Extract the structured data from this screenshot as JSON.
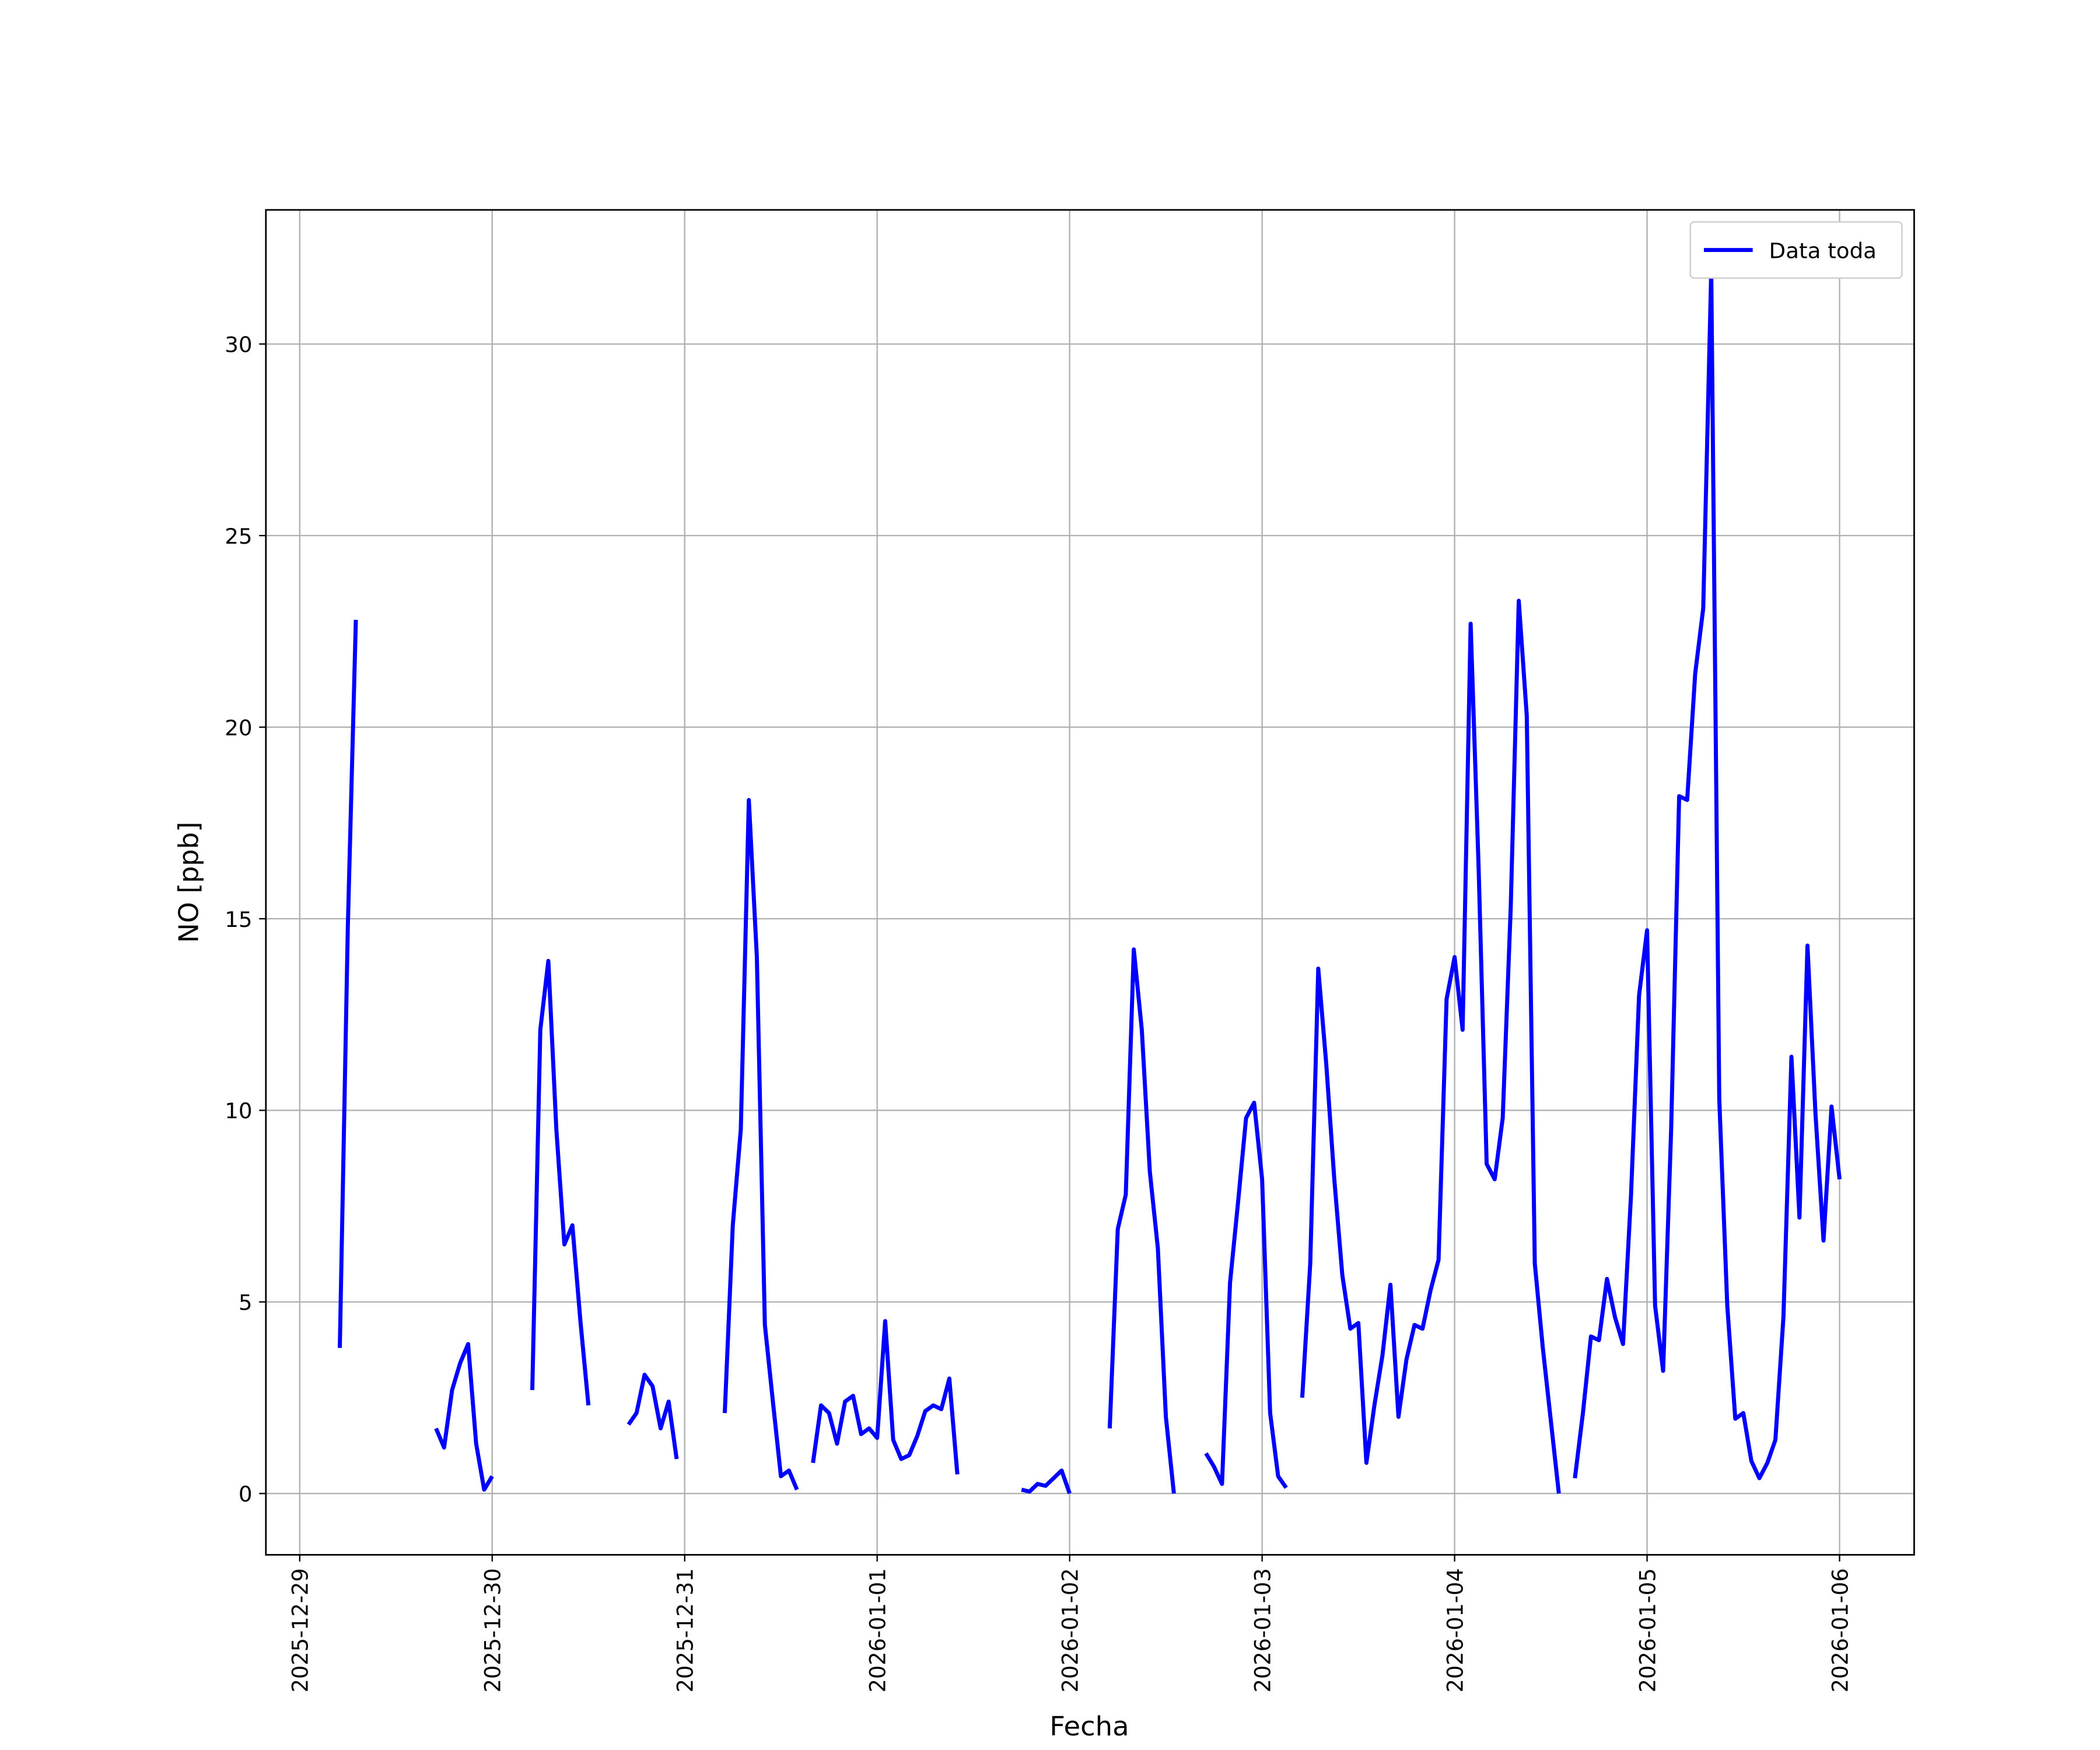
{
  "chart_data": {
    "type": "line",
    "xlabel": "Fecha",
    "ylabel": "NO [ppb]",
    "x": [
      "2025-12-29 05:00",
      "2025-12-29 06:00",
      "2025-12-29 07:00",
      "2025-12-29 08:00",
      "2025-12-29 17:00",
      "2025-12-29 18:00",
      "2025-12-29 19:00",
      "2025-12-29 20:00",
      "2025-12-29 21:00",
      "2025-12-29 22:00",
      "2025-12-29 23:00",
      "2025-12-30 00:00",
      "2025-12-30 01:00",
      "2025-12-30 05:00",
      "2025-12-30 06:00",
      "2025-12-30 07:00",
      "2025-12-30 08:00",
      "2025-12-30 09:00",
      "2025-12-30 10:00",
      "2025-12-30 11:00",
      "2025-12-30 12:00",
      "2025-12-30 13:00",
      "2025-12-30 17:00",
      "2025-12-30 18:00",
      "2025-12-30 19:00",
      "2025-12-30 20:00",
      "2025-12-30 21:00",
      "2025-12-30 22:00",
      "2025-12-30 23:00",
      "2025-12-31 00:00",
      "2025-12-31 05:00",
      "2025-12-31 06:00",
      "2025-12-31 07:00",
      "2025-12-31 08:00",
      "2025-12-31 09:00",
      "2025-12-31 10:00",
      "2025-12-31 11:00",
      "2025-12-31 12:00",
      "2025-12-31 13:00",
      "2025-12-31 14:00",
      "2025-12-31 15:00",
      "2025-12-31 16:00",
      "2025-12-31 17:00",
      "2025-12-31 18:00",
      "2025-12-31 19:00",
      "2025-12-31 20:00",
      "2025-12-31 21:00",
      "2025-12-31 22:00",
      "2025-12-31 23:00",
      "2026-01-01 00:00",
      "2026-01-01 01:00",
      "2026-01-01 02:00",
      "2026-01-01 03:00",
      "2026-01-01 04:00",
      "2026-01-01 05:00",
      "2026-01-01 06:00",
      "2026-01-01 07:00",
      "2026-01-01 08:00",
      "2026-01-01 09:00",
      "2026-01-01 10:00",
      "2026-01-01 11:00",
      "2026-01-01 18:00",
      "2026-01-01 19:00",
      "2026-01-01 20:00",
      "2026-01-01 21:00",
      "2026-01-01 22:00",
      "2026-01-01 23:00",
      "2026-01-02 00:00",
      "2026-01-02 01:00",
      "2026-01-02 05:00",
      "2026-01-02 06:00",
      "2026-01-02 07:00",
      "2026-01-02 08:00",
      "2026-01-02 09:00",
      "2026-01-02 10:00",
      "2026-01-02 11:00",
      "2026-01-02 12:00",
      "2026-01-02 13:00",
      "2026-01-02 14:00",
      "2026-01-02 17:00",
      "2026-01-02 18:00",
      "2026-01-02 19:00",
      "2026-01-02 20:00",
      "2026-01-02 21:00",
      "2026-01-02 22:00",
      "2026-01-02 23:00",
      "2026-01-03 00:00",
      "2026-01-03 01:00",
      "2026-01-03 02:00",
      "2026-01-03 03:00",
      "2026-01-03 04:00",
      "2026-01-03 05:00",
      "2026-01-03 06:00",
      "2026-01-03 07:00",
      "2026-01-03 08:00",
      "2026-01-03 09:00",
      "2026-01-03 10:00",
      "2026-01-03 11:00",
      "2026-01-03 12:00",
      "2026-01-03 13:00",
      "2026-01-03 14:00",
      "2026-01-03 15:00",
      "2026-01-03 16:00",
      "2026-01-03 17:00",
      "2026-01-03 18:00",
      "2026-01-03 19:00",
      "2026-01-03 20:00",
      "2026-01-03 21:00",
      "2026-01-03 22:00",
      "2026-01-03 23:00",
      "2026-01-04 00:00",
      "2026-01-04 01:00",
      "2026-01-04 02:00",
      "2026-01-04 03:00",
      "2026-01-04 04:00",
      "2026-01-04 05:00",
      "2026-01-04 06:00",
      "2026-01-04 07:00",
      "2026-01-04 08:00",
      "2026-01-04 09:00",
      "2026-01-04 10:00",
      "2026-01-04 11:00",
      "2026-01-04 12:00",
      "2026-01-04 13:00",
      "2026-01-04 14:00",
      "2026-01-04 15:00",
      "2026-01-04 16:00",
      "2026-01-04 17:00",
      "2026-01-04 18:00",
      "2026-01-04 19:00",
      "2026-01-04 20:00",
      "2026-01-04 21:00",
      "2026-01-04 22:00",
      "2026-01-04 23:00",
      "2026-01-05 00:00",
      "2026-01-05 01:00",
      "2026-01-05 02:00",
      "2026-01-05 03:00",
      "2026-01-05 04:00",
      "2026-01-05 05:00",
      "2026-01-05 06:00",
      "2026-01-05 07:00",
      "2026-01-05 08:00",
      "2026-01-05 09:00",
      "2026-01-05 10:00",
      "2026-01-05 11:00",
      "2026-01-05 12:00",
      "2026-01-05 13:00",
      "2026-01-05 14:00",
      "2026-01-05 15:00",
      "2026-01-05 16:00",
      "2026-01-05 17:00",
      "2026-01-05 18:00",
      "2026-01-05 19:00",
      "2026-01-05 20:00",
      "2026-01-05 21:00",
      "2026-01-05 22:00",
      "2026-01-05 23:00",
      "2026-01-06 00:00"
    ],
    "series": [
      {
        "name": "Data toda",
        "color": "#0000ff",
        "values": [
          3.8,
          14.8,
          22.8,
          null,
          1.7,
          1.2,
          2.7,
          3.4,
          3.9,
          1.3,
          0.1,
          0.45,
          null,
          2.7,
          12.1,
          13.9,
          9.5,
          6.5,
          7.0,
          4.5,
          2.3,
          null,
          1.8,
          2.1,
          3.1,
          2.8,
          1.7,
          2.4,
          0.9,
          null,
          2.1,
          7.0,
          9.5,
          18.1,
          14.0,
          4.4,
          2.4,
          0.45,
          0.6,
          0.1,
          null,
          0.8,
          2.3,
          2.1,
          1.3,
          2.4,
          2.55,
          1.55,
          1.7,
          1.45,
          4.5,
          1.4,
          0.9,
          1.0,
          1.5,
          2.15,
          2.3,
          2.2,
          3.0,
          0.5,
          null,
          0.1,
          0.05,
          0.25,
          0.2,
          0.4,
          0.6,
          0.0,
          null,
          1.7,
          6.9,
          7.8,
          14.2,
          12.1,
          8.4,
          6.4,
          2.0,
          0.0,
          null,
          1.05,
          0.7,
          0.25,
          5.5,
          7.6,
          9.8,
          10.2,
          8.2,
          2.1,
          0.45,
          0.15,
          null,
          2.5,
          6.0,
          13.7,
          11.2,
          8.2,
          5.7,
          4.3,
          4.45,
          0.8,
          2.3,
          3.6,
          5.45,
          2.0,
          3.5,
          4.4,
          4.3,
          5.3,
          6.1,
          12.9,
          14.0,
          12.1,
          22.7,
          16.3,
          8.6,
          8.2,
          9.8,
          15.3,
          23.3,
          20.3,
          6.0,
          3.8,
          1.9,
          0.0,
          null,
          0.4,
          2.1,
          4.1,
          4.0,
          5.6,
          4.6,
          3.9,
          7.8,
          13.0,
          14.7,
          4.9,
          3.2,
          9.5,
          18.2,
          18.1,
          21.4,
          23.1,
          31.9,
          10.3,
          4.9,
          1.95,
          2.1,
          0.85,
          0.4,
          0.8,
          1.4,
          4.6,
          11.4,
          7.2,
          14.3,
          9.9,
          6.6,
          10.1,
          8.2
        ]
      }
    ],
    "xlim": [
      "2025-12-28 19:47",
      "2026-01-06 09:18"
    ],
    "xticks": [
      "2025-12-29",
      "2025-12-30",
      "2025-12-31",
      "2026-01-01",
      "2026-01-02",
      "2026-01-03",
      "2026-01-04",
      "2026-01-05",
      "2026-01-06"
    ],
    "ylim": [
      -1.6,
      33.5
    ],
    "yticks": [
      0,
      5,
      10,
      15,
      20,
      25,
      30
    ],
    "grid": true,
    "legend": "upper right"
  }
}
